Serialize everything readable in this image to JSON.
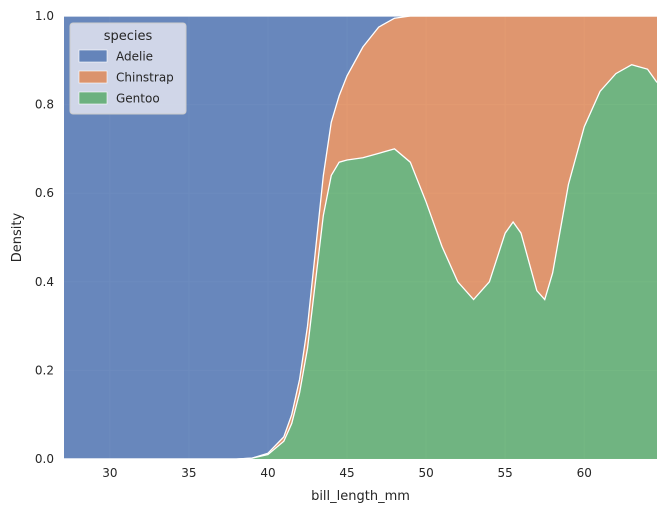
{
  "chart_data": {
    "type": "area",
    "stacking": "fill",
    "xlabel": "bill_length_mm",
    "ylabel": "Density",
    "xlim": [
      27.1,
      64.6
    ],
    "ylim": [
      0,
      1
    ],
    "xticks": [
      30,
      35,
      40,
      45,
      50,
      55,
      60
    ],
    "yticks": [
      0.0,
      0.2,
      0.4,
      0.6,
      0.8,
      1.0
    ],
    "xtick_labels": [
      "30",
      "35",
      "40",
      "45",
      "50",
      "55",
      "60"
    ],
    "ytick_labels": [
      "0.0",
      "0.2",
      "0.4",
      "0.6",
      "0.8",
      "1.0"
    ],
    "grid": true,
    "background": "#eaeaf2",
    "legend": {
      "title": "species",
      "placement": "top-left",
      "entries": [
        "Adelie",
        "Chinstrap",
        "Gentoo"
      ]
    },
    "x": [
      27.1,
      36,
      37,
      38,
      39,
      40,
      41,
      41.5,
      42,
      42.5,
      43,
      43.5,
      44,
      44.5,
      45,
      46,
      47,
      48,
      49,
      50,
      51,
      52,
      53,
      54,
      55,
      55.5,
      56,
      57,
      57.5,
      58,
      59,
      60,
      61,
      62,
      63,
      64,
      64.6
    ],
    "series": [
      {
        "name": "Gentoo",
        "color": "#55a868",
        "values": [
          0,
          0,
          0,
          0,
          0.002,
          0.01,
          0.04,
          0.08,
          0.15,
          0.25,
          0.4,
          0.55,
          0.64,
          0.67,
          0.675,
          0.68,
          0.69,
          0.7,
          0.67,
          0.58,
          0.48,
          0.4,
          0.36,
          0.4,
          0.51,
          0.535,
          0.51,
          0.38,
          0.36,
          0.42,
          0.62,
          0.75,
          0.83,
          0.87,
          0.89,
          0.88,
          0.85
        ]
      },
      {
        "name": "Chinstrap",
        "color": "#dd8452",
        "values": [
          0,
          0,
          0,
          0,
          0,
          0.003,
          0.01,
          0.02,
          0.03,
          0.05,
          0.07,
          0.09,
          0.12,
          0.15,
          0.19,
          0.25,
          0.285,
          0.295,
          0.33,
          0.42,
          0.52,
          0.6,
          0.64,
          0.6,
          0.49,
          0.465,
          0.49,
          0.62,
          0.64,
          0.58,
          0.38,
          0.25,
          0.17,
          0.13,
          0.11,
          0.12,
          0.15
        ]
      },
      {
        "name": "Adelie",
        "color": "#4c72b0",
        "values": [
          1,
          1,
          1,
          1,
          0.998,
          0.987,
          0.95,
          0.9,
          0.82,
          0.7,
          0.53,
          0.36,
          0.24,
          0.18,
          0.135,
          0.07,
          0.025,
          0.005,
          0,
          0,
          0,
          0,
          0,
          0,
          0,
          0,
          0,
          0,
          0,
          0,
          0,
          0,
          0,
          0,
          0,
          0,
          0
        ]
      }
    ]
  }
}
